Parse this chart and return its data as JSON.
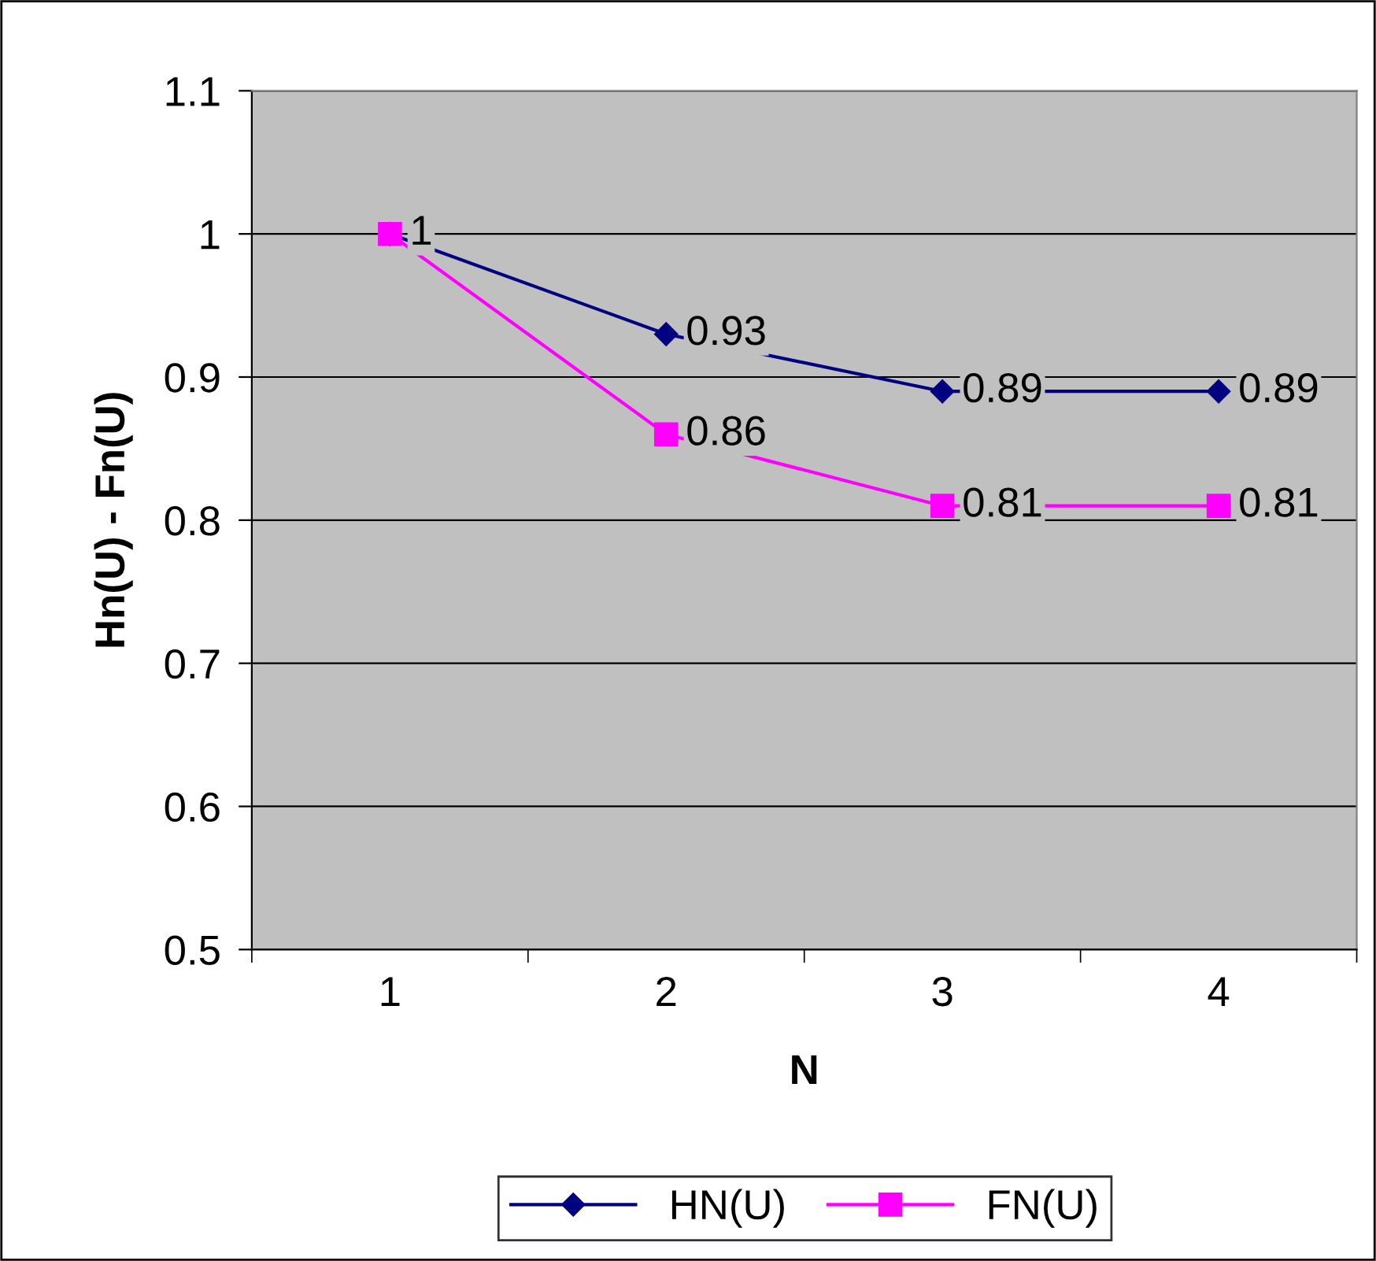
{
  "chart_data": {
    "type": "line",
    "xlabel": "N",
    "ylabel": "Hn(U) - Fn(U)",
    "categories": [
      "1",
      "2",
      "3",
      "4"
    ],
    "series": [
      {
        "name": "HN(U)",
        "color": "#000080",
        "marker": "diamond",
        "values": [
          1,
          0.93,
          0.89,
          0.89
        ],
        "value_labels": [
          null,
          "0.93",
          "0.89",
          "0.89"
        ]
      },
      {
        "name": "FN(U)",
        "color": "#ff00ff",
        "marker": "square",
        "values": [
          1,
          0.86,
          0.81,
          0.81
        ],
        "value_labels": [
          "1",
          "0.86",
          "0.81",
          "0.81"
        ]
      }
    ],
    "ylim": [
      0.5,
      1.1
    ],
    "yticks": [
      0.5,
      0.6,
      0.7,
      0.8,
      0.9,
      1,
      1.1
    ],
    "grid": "y",
    "legend": "bottom"
  }
}
